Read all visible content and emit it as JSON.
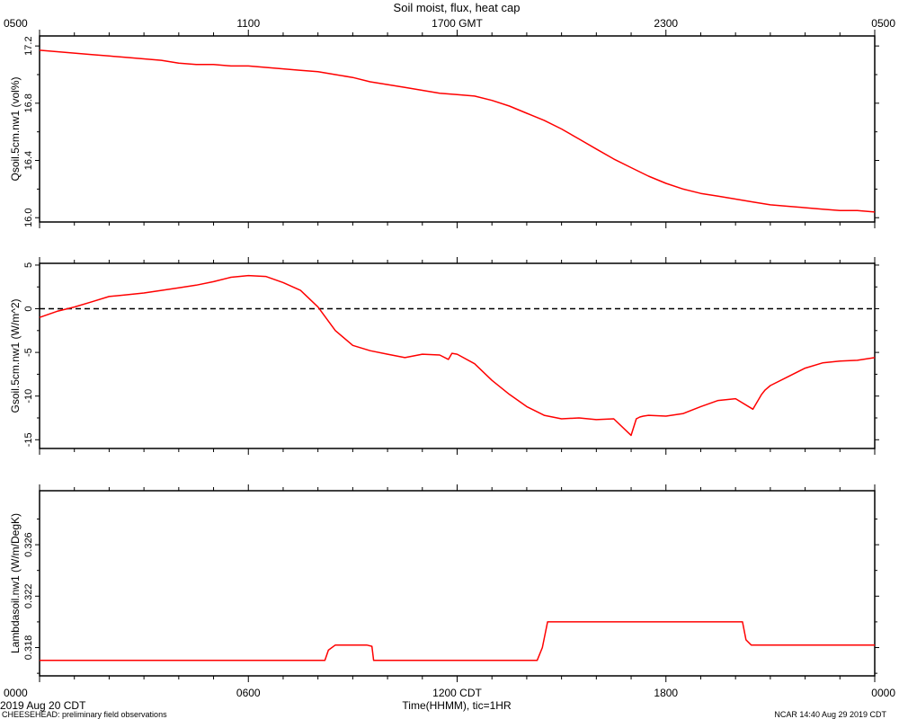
{
  "title": "Soil moist, flux, heat cap",
  "top_axis_labels": [
    "0500",
    "1100",
    "1700 GMT",
    "2300",
    "0500"
  ],
  "bottom_axis_labels": [
    "0000",
    "0600",
    "1200 CDT",
    "1800",
    "0000"
  ],
  "x_axis_title": "Time(HHMM), tic=1HR",
  "date_label": "2019 Aug 20 CDT",
  "footer_left": "CHEESEHEAD: preliminary field observations",
  "footer_right": "NCAR 14:40 Aug 29 2019 CDT",
  "colors": {
    "series": "#ff0000",
    "axis": "#000000",
    "zero_line": "#000000"
  },
  "chart_data": [
    {
      "type": "line",
      "ylabel": "Qsoil.5cm.nw1 (vol%)",
      "ylim": [
        15.97,
        17.27
      ],
      "yticks": [
        16.0,
        16.4,
        16.8,
        17.2
      ],
      "ytick_labels": [
        "16.0",
        "16.4",
        "16.8",
        "17.2"
      ],
      "xlim": [
        0,
        24
      ],
      "x_unit": "hours since 0000 CDT",
      "x": [
        0,
        0.5,
        1,
        1.5,
        2,
        2.5,
        3,
        3.5,
        4,
        4.5,
        5,
        5.5,
        6,
        6.5,
        7,
        7.5,
        8,
        8.5,
        9,
        9.5,
        10,
        10.5,
        11,
        11.5,
        12,
        12.5,
        13,
        13.5,
        14,
        14.5,
        15,
        15.5,
        16,
        16.5,
        17,
        17.5,
        18,
        18.5,
        19,
        19.5,
        20,
        20.5,
        21,
        21.5,
        22,
        22.5,
        23,
        23.5,
        24
      ],
      "y": [
        17.17,
        17.16,
        17.15,
        17.14,
        17.13,
        17.12,
        17.11,
        17.1,
        17.08,
        17.07,
        17.07,
        17.06,
        17.06,
        17.05,
        17.04,
        17.03,
        17.02,
        17.0,
        16.98,
        16.95,
        16.93,
        16.91,
        16.89,
        16.87,
        16.86,
        16.85,
        16.82,
        16.78,
        16.73,
        16.68,
        16.62,
        16.55,
        16.48,
        16.41,
        16.35,
        16.29,
        16.24,
        16.2,
        16.17,
        16.15,
        16.13,
        16.11,
        16.09,
        16.08,
        16.07,
        16.06,
        16.05,
        16.05,
        16.04
      ]
    },
    {
      "type": "line",
      "ylabel": "Gsoil.5cm.nw1 (W/m^2)",
      "ylim": [
        -16,
        5.2
      ],
      "yticks": [
        5,
        0,
        -5,
        -10,
        -15
      ],
      "ytick_labels": [
        "5",
        "0",
        "-5",
        "-10",
        "-15"
      ],
      "reference_line": {
        "y": 0,
        "style": "dashed"
      },
      "xlim": [
        0,
        24
      ],
      "x": [
        0,
        0.5,
        1,
        1.5,
        2,
        2.5,
        3,
        3.5,
        4,
        4.5,
        5,
        5.5,
        6,
        6.5,
        7,
        7.5,
        8,
        8.5,
        9,
        9.5,
        10,
        10.5,
        11,
        11.5,
        11.75,
        11.85,
        12,
        12.5,
        13,
        13.5,
        14,
        14.5,
        15,
        15.5,
        16,
        16.5,
        17,
        17.15,
        17.25,
        17.35,
        17.5,
        18,
        18.5,
        19,
        19.5,
        20,
        20.5,
        20.75,
        20.85,
        21,
        21.5,
        22,
        22.5,
        23,
        23.5,
        24
      ],
      "y": [
        -1.0,
        -0.3,
        0.2,
        0.8,
        1.4,
        1.6,
        1.8,
        2.1,
        2.4,
        2.7,
        3.1,
        3.6,
        3.8,
        3.7,
        3.0,
        2.1,
        0.2,
        -2.5,
        -4.2,
        -4.8,
        -5.2,
        -5.6,
        -5.2,
        -5.3,
        -5.8,
        -5.1,
        -5.2,
        -6.3,
        -8.2,
        -9.8,
        -11.2,
        -12.2,
        -12.6,
        -12.5,
        -12.7,
        -12.6,
        -14.5,
        -12.6,
        -12.4,
        -12.3,
        -12.2,
        -12.3,
        -12.0,
        -11.2,
        -10.5,
        -10.3,
        -11.5,
        -9.8,
        -9.3,
        -8.8,
        -7.8,
        -6.8,
        -6.2,
        -6.0,
        -5.9,
        -5.6
      ]
    },
    {
      "type": "line",
      "ylabel": "Lambdasoil.nw1 (W/m/DegK)",
      "ylim": [
        0.3158,
        0.3302
      ],
      "yticks": [
        0.318,
        0.322,
        0.326
      ],
      "ytick_labels": [
        "0.318",
        "0.322",
        "0.326"
      ],
      "xlim": [
        0,
        24
      ],
      "x": [
        0,
        8.2,
        8.3,
        8.5,
        9.4,
        9.55,
        9.6,
        14.3,
        14.45,
        14.6,
        20.2,
        20.3,
        20.45,
        24
      ],
      "y": [
        0.317,
        0.317,
        0.3178,
        0.3182,
        0.3182,
        0.3181,
        0.317,
        0.317,
        0.318,
        0.32,
        0.32,
        0.3186,
        0.3182,
        0.3182
      ]
    }
  ]
}
